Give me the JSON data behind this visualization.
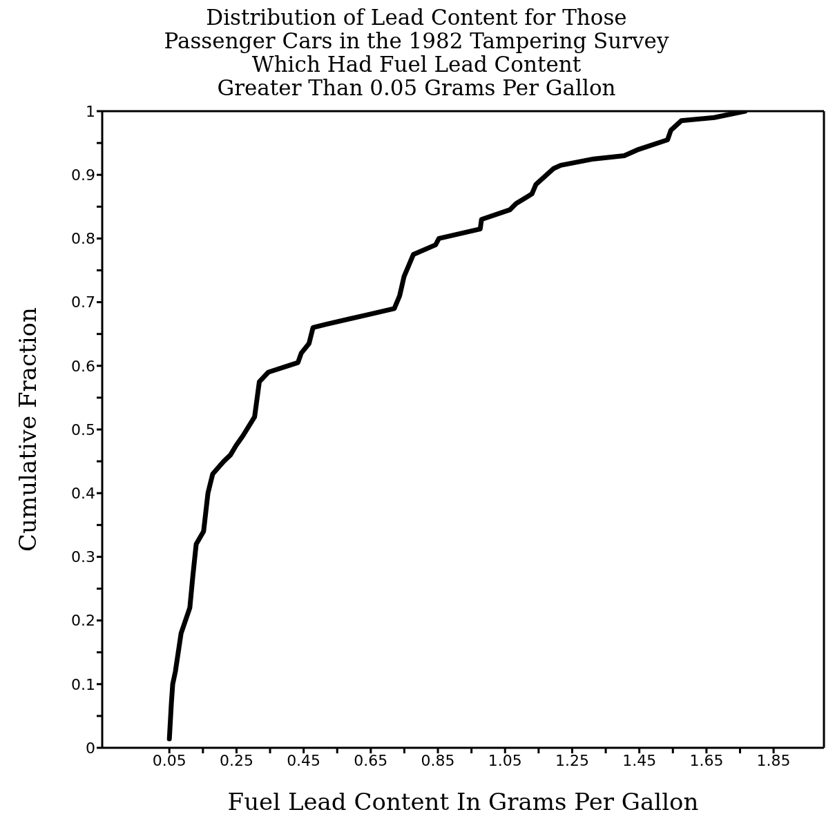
{
  "chart_data": {
    "type": "line",
    "title": "Distribution of Lead Content for Those\nPassenger Cars in the 1982 Tampering Survey\nWhich Had Fuel Lead Content\nGreater Than 0.05 Grams Per Gallon",
    "xlabel": "Fuel Lead Content In Grams Per Gallon",
    "ylabel": "Cumulative Fraction",
    "x": [
      0.05,
      0.056,
      0.06,
      0.068,
      0.085,
      0.111,
      0.12,
      0.13,
      0.152,
      0.165,
      0.179,
      0.212,
      0.232,
      0.249,
      0.269,
      0.304,
      0.318,
      0.345,
      0.433,
      0.443,
      0.466,
      0.478,
      0.515,
      0.638,
      0.72,
      0.736,
      0.749,
      0.761,
      0.777,
      0.843,
      0.853,
      0.976,
      0.98,
      1.064,
      1.083,
      1.13,
      1.142,
      1.195,
      1.216,
      1.314,
      1.405,
      1.448,
      1.534,
      1.544,
      1.575,
      1.673,
      1.765
    ],
    "series": [
      {
        "color": "#000000",
        "values": [
          0.014,
          0.07,
          0.1,
          0.12,
          0.18,
          0.22,
          0.27,
          0.32,
          0.34,
          0.4,
          0.43,
          0.45,
          0.46,
          0.475,
          0.49,
          0.52,
          0.575,
          0.59,
          0.605,
          0.62,
          0.635,
          0.66,
          0.665,
          0.68,
          0.69,
          0.71,
          0.74,
          0.755,
          0.775,
          0.79,
          0.8,
          0.815,
          0.83,
          0.845,
          0.855,
          0.87,
          0.885,
          0.91,
          0.915,
          0.925,
          0.93,
          0.94,
          0.955,
          0.97,
          0.985,
          0.99,
          1.0
        ]
      }
    ],
    "xlim": [
      -0.15,
      2.0
    ],
    "xticks": [
      0.05,
      {
        "value": 0.15,
        "label": null
      },
      0.25,
      {
        "value": 0.35,
        "label": null
      },
      0.45,
      {
        "value": 0.55,
        "label": null
      },
      0.65,
      {
        "value": 0.75,
        "label": null
      },
      0.85,
      {
        "value": 0.95,
        "label": null
      },
      1.05,
      {
        "value": 1.15,
        "label": null
      },
      1.25,
      {
        "value": 1.35,
        "label": null
      },
      1.45,
      {
        "value": 1.55,
        "label": null
      },
      1.65,
      {
        "value": 1.75,
        "label": null
      },
      1.85
    ],
    "ylim": [
      0,
      1
    ],
    "yticks": [
      0,
      {
        "value": 0.05,
        "label": null
      },
      0.1,
      {
        "value": 0.15,
        "label": null
      },
      0.2,
      {
        "value": 0.25,
        "label": null
      },
      0.3,
      {
        "value": 0.35,
        "label": null
      },
      0.4,
      {
        "value": 0.45,
        "label": null
      },
      0.5,
      {
        "value": 0.55,
        "label": null
      },
      0.6,
      {
        "value": 0.65,
        "label": null
      },
      0.7,
      {
        "value": 0.75,
        "label": null
      },
      0.8,
      {
        "value": 0.85,
        "label": null
      },
      0.9,
      {
        "value": 0.95,
        "label": null
      },
      1
    ],
    "grid": false,
    "legend": false,
    "marker": "none",
    "line_style": "solid"
  }
}
